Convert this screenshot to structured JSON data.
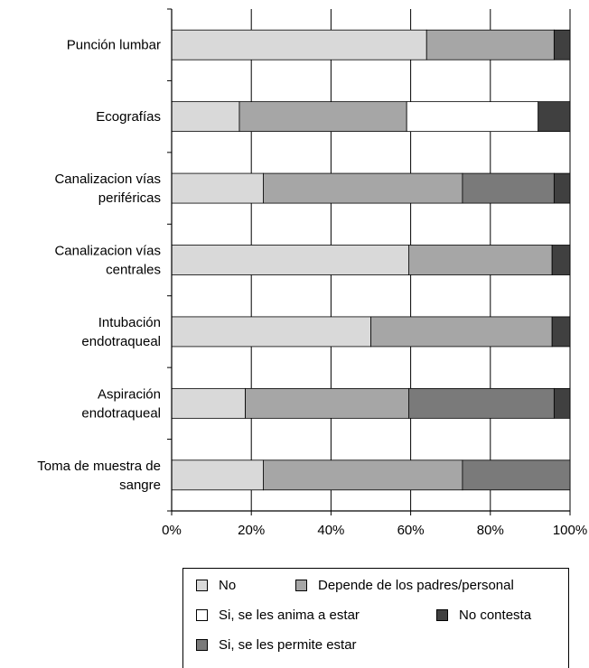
{
  "chart_data": {
    "type": "bar",
    "orientation": "horizontal",
    "stacked": true,
    "title": "",
    "xlabel": "",
    "ylabel": "",
    "xlim": [
      0,
      100
    ],
    "x_ticks": [
      "0%",
      "20%",
      "40%",
      "60%",
      "80%",
      "100%"
    ],
    "grid": "vertical",
    "legend_position": "bottom",
    "categories": [
      "Punción lumbar",
      "Ecografías",
      "Canalizacion vías periféricas",
      "Canalizacion vías centrales",
      "Intubación endotraqueal",
      "Aspiración endotraqueal",
      "Toma de muestra de sangre"
    ],
    "category_lines": [
      [
        "Punción lumbar"
      ],
      [
        "Ecografías"
      ],
      [
        "Canalizacion vías",
        "periféricas"
      ],
      [
        "Canalizacion vías",
        "centrales"
      ],
      [
        "Intubación",
        "endotraqueal"
      ],
      [
        "Aspiración",
        "endotraqueal"
      ],
      [
        "Toma de muestra de",
        "sangre"
      ]
    ],
    "series": [
      {
        "name": "No",
        "color": "#d9d9d9",
        "values": [
          64,
          17,
          23,
          59.5,
          50,
          18.5,
          23
        ]
      },
      {
        "name": "Depende de los padres/personal",
        "color": "#a6a6a6",
        "values": [
          32,
          42,
          50,
          36,
          45.5,
          41,
          50
        ]
      },
      {
        "name": "Si, se les anima a estar",
        "color": "#ffffff",
        "values": [
          0,
          33,
          0,
          0,
          0,
          0,
          0
        ]
      },
      {
        "name": "Si, se les permite estar",
        "color": "#7a7a7a",
        "values": [
          0,
          0,
          23,
          0,
          0,
          36.5,
          27
        ]
      },
      {
        "name": "No contesta",
        "color": "#404040",
        "values": [
          4,
          8,
          4,
          4.5,
          4.5,
          4,
          0
        ]
      }
    ]
  },
  "legend": {
    "items": [
      {
        "label": "No",
        "color": "#d9d9d9"
      },
      {
        "label": "Depende de los padres/personal",
        "color": "#a6a6a6"
      },
      {
        "label": "Si, se les anima a estar",
        "color": "#ffffff"
      },
      {
        "label": "No contesta",
        "color": "#404040"
      },
      {
        "label": "Si, se les permite estar",
        "color": "#7a7a7a"
      }
    ]
  }
}
